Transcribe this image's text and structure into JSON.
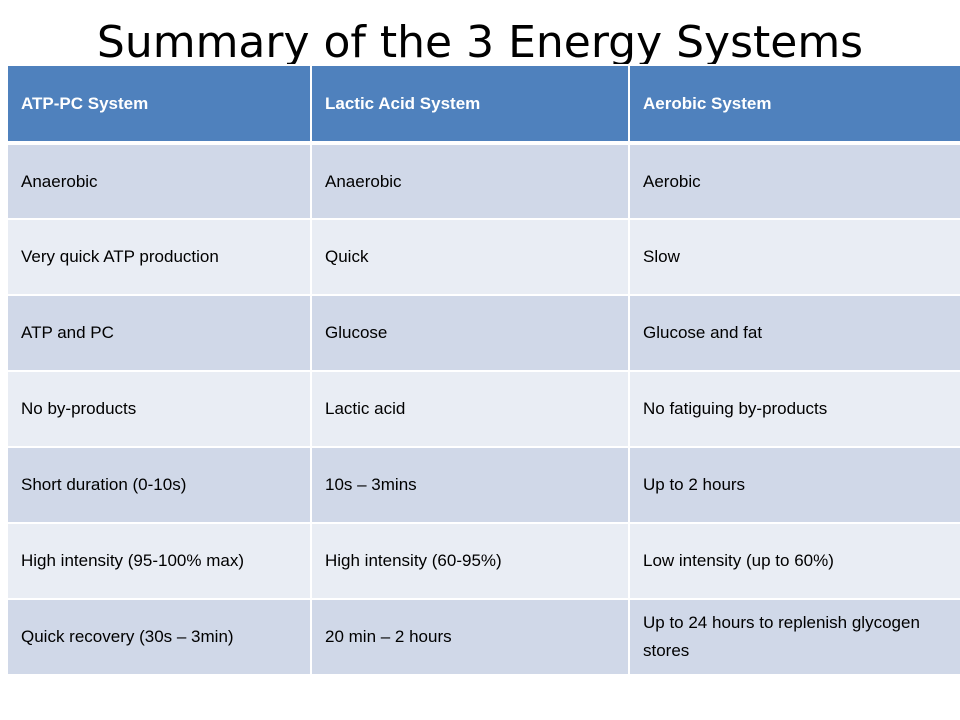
{
  "title": "Summary of the 3 Energy Systems",
  "table": {
    "headers": [
      "ATP-PC System",
      "Lactic Acid System",
      "Aerobic System"
    ],
    "rows": [
      [
        "Anaerobic",
        "Anaerobic",
        "Aerobic"
      ],
      [
        "Very quick ATP production",
        "Quick",
        "Slow"
      ],
      [
        "ATP and PC",
        "Glucose",
        "Glucose and fat"
      ],
      [
        "No by-products",
        "Lactic acid",
        "No fatiguing by-products"
      ],
      [
        "Short duration (0-10s)",
        "10s – 3mins",
        "Up to 2 hours"
      ],
      [
        "High intensity (95-100% max)",
        "High intensity (60-95%)",
        "Low intensity (up to 60%)"
      ],
      [
        "Quick recovery (30s – 3min)",
        "20 min – 2 hours",
        "Up to 24 hours to replenish glycogen stores"
      ]
    ]
  },
  "colors": {
    "header_bg": "#4f81bd",
    "row_dark": "#d0d8e8",
    "row_light": "#e9edf4"
  }
}
